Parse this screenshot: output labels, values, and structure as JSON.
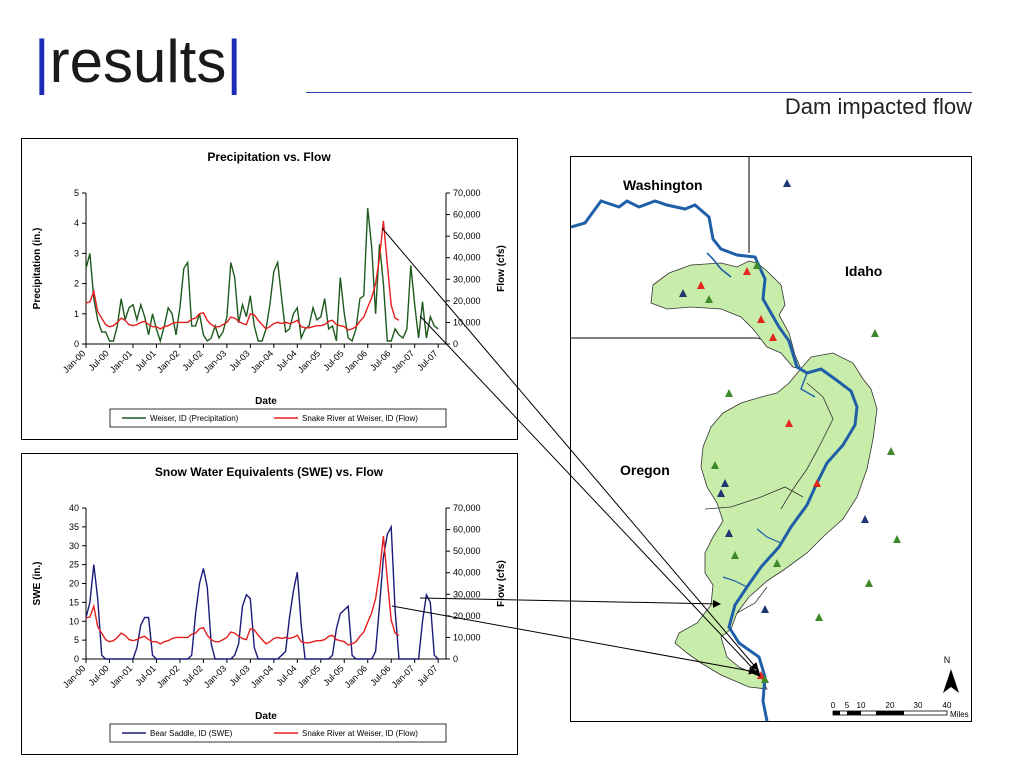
{
  "slide": {
    "title": "results",
    "bar_char": "|",
    "subtitle": "Dam impacted flow"
  },
  "colors": {
    "title_bar": "#1b2bb5",
    "precip_series": "#1e5a1e",
    "swe_series": "#1b1b7a",
    "flow_series": "#e51e1e",
    "river": "#1f5fa8",
    "basin": "#c8ecaa",
    "tri_red": "#e3261d",
    "tri_green": "#3e8a2a",
    "tri_navy": "#1d3570"
  },
  "chart_data": [
    {
      "type": "line",
      "title": "Precipitation vs. Flow",
      "xlabel": "Date",
      "ylabel": "Precipitation (in.)",
      "y2label": "Flow (cfs)",
      "categories": [
        "Jan-00",
        "Jul-00",
        "Jan-01",
        "Jul-01",
        "Jan-02",
        "Jul-02",
        "Jan-03",
        "Jul-03",
        "Jan-04",
        "Jul-04",
        "Jan-05",
        "Jul-05",
        "Jan-06",
        "Jul-06",
        "Jan-07",
        "Jul-07"
      ],
      "ylim": [
        0,
        5
      ],
      "yticks": [
        "0",
        "1",
        "2",
        "3",
        "4",
        "5"
      ],
      "y2lim": [
        0,
        70000
      ],
      "y2ticks": [
        "0",
        "10,000",
        "20,000",
        "30,000",
        "40,000",
        "50,000",
        "60,000",
        "70,000"
      ],
      "legend_position": "bottom",
      "series": [
        {
          "name": "Weiser, ID (Precipitation)",
          "axis": "left",
          "color": "#1e5a1e",
          "x": [
            0,
            1,
            2,
            3,
            4,
            5,
            6,
            7,
            8,
            9,
            10,
            11,
            12,
            13,
            14,
            15,
            16,
            17,
            18,
            19,
            20,
            21,
            22,
            23,
            24,
            25,
            26,
            27,
            28,
            29,
            30,
            31,
            32,
            33,
            34,
            35,
            36,
            37,
            38,
            39,
            40,
            41,
            42,
            43,
            44,
            45,
            46,
            47,
            48,
            49,
            50,
            51,
            52,
            53,
            54,
            55,
            56,
            57,
            58,
            59,
            60,
            61,
            62,
            63,
            64,
            65,
            66,
            67,
            68,
            69,
            70,
            71,
            72,
            73,
            74,
            75,
            76,
            77,
            78,
            79,
            80,
            81,
            82,
            83,
            84,
            85,
            86,
            87,
            88,
            89,
            90
          ],
          "values": [
            2.5,
            3.0,
            1.5,
            0.8,
            0.4,
            0.4,
            0.1,
            0.1,
            0.6,
            1.5,
            0.8,
            1.2,
            1.3,
            0.8,
            1.3,
            0.9,
            0.3,
            1.0,
            0.5,
            0.1,
            0.6,
            1.2,
            1.0,
            0.3,
            1.2,
            2.5,
            2.7,
            0.6,
            0.6,
            1.0,
            0.3,
            0.1,
            0.2,
            0.6,
            0.2,
            0.4,
            0.9,
            2.7,
            2.2,
            0.7,
            1.3,
            0.9,
            1.6,
            0.6,
            0.1,
            0.1,
            0.5,
            1.3,
            2.4,
            2.7,
            1.5,
            0.4,
            0.5,
            1.0,
            1.2,
            0.2,
            0.5,
            0.6,
            1.2,
            0.8,
            0.9,
            1.5,
            0.5,
            0.6,
            0.1,
            2.2,
            1.0,
            0.2,
            0.1,
            0.5,
            1.5,
            1.6,
            4.5,
            3.2,
            1.0,
            3.3,
            2.0,
            0.1,
            0.1,
            0.5,
            0.3,
            0.2,
            0.5,
            2.6,
            1.3,
            0.2,
            1.4,
            0.2,
            0.9,
            0.6,
            0.5
          ]
        },
        {
          "name": "Snake River at Weiser, ID (Flow)",
          "axis": "right",
          "color": "#e51e1e",
          "x": [
            0,
            1,
            2,
            3,
            4,
            5,
            6,
            7,
            8,
            9,
            10,
            11,
            12,
            13,
            14,
            15,
            16,
            17,
            18,
            19,
            20,
            21,
            22,
            23,
            24,
            25,
            26,
            27,
            28,
            29,
            30,
            31,
            32,
            33,
            34,
            35,
            36,
            37,
            38,
            39,
            40,
            41,
            42,
            43,
            44,
            45,
            46,
            47,
            48,
            49,
            50,
            51,
            52,
            53,
            54,
            55,
            56,
            57,
            58,
            59,
            60,
            61,
            62,
            63,
            64,
            65,
            66,
            67,
            68,
            69,
            70,
            71,
            72,
            73,
            74,
            75,
            76,
            77,
            78,
            79,
            80
          ],
          "values": [
            19000,
            19500,
            24500,
            15000,
            12000,
            9000,
            8000,
            8500,
            10000,
            12000,
            11000,
            9000,
            8500,
            9000,
            10000,
            10500,
            9000,
            8000,
            8000,
            7000,
            8000,
            8500,
            9500,
            10000,
            10000,
            10000,
            10000,
            11500,
            12000,
            14000,
            14500,
            11000,
            9000,
            8000,
            8000,
            9000,
            10000,
            12500,
            12000,
            10500,
            9500,
            9000,
            14000,
            13500,
            11000,
            9000,
            7000,
            8000,
            9500,
            10000,
            9500,
            10000,
            9500,
            10000,
            11000,
            8000,
            7500,
            7500,
            8000,
            8500,
            8500,
            9000,
            10500,
            11000,
            9000,
            8500,
            8000,
            6500,
            7000,
            8000,
            10500,
            12500,
            17000,
            21500,
            28000,
            40000,
            57000,
            37000,
            18000,
            12000,
            11000
          ]
        }
      ]
    },
    {
      "type": "line",
      "title": "Snow Water Equivalents (SWE) vs. Flow",
      "xlabel": "Date",
      "ylabel": "SWE (in.)",
      "y2label": "Flow (cfs)",
      "categories": [
        "Jan-00",
        "Jul-00",
        "Jan-01",
        "Jul-01",
        "Jan-02",
        "Jul-02",
        "Jan-03",
        "Jul-03",
        "Jan-04",
        "Jul-04",
        "Jan-05",
        "Jul-05",
        "Jan-06",
        "Jul-06",
        "Jan-07",
        "Jul-07"
      ],
      "ylim": [
        0,
        40
      ],
      "yticks": [
        "0",
        "5",
        "10",
        "15",
        "20",
        "25",
        "30",
        "35",
        "40"
      ],
      "y2lim": [
        0,
        70000
      ],
      "y2ticks": [
        "0",
        "10,000",
        "20,000",
        "30,000",
        "40,000",
        "50,000",
        "60,000",
        "70,000"
      ],
      "legend_position": "bottom",
      "series": [
        {
          "name": "Bear Saddle, ID (SWE)",
          "axis": "left",
          "color": "#1b1b7a",
          "x": [
            0,
            1,
            2,
            3,
            4,
            5,
            6,
            7,
            8,
            9,
            10,
            11,
            12,
            13,
            14,
            15,
            16,
            17,
            18,
            19,
            20,
            21,
            22,
            23,
            24,
            25,
            26,
            27,
            28,
            29,
            30,
            31,
            32,
            33,
            34,
            35,
            36,
            37,
            38,
            39,
            40,
            41,
            42,
            43,
            44,
            45,
            46,
            47,
            48,
            49,
            50,
            51,
            52,
            53,
            54,
            55,
            56,
            57,
            58,
            59,
            60,
            61,
            62,
            63,
            64,
            65,
            66,
            67,
            68,
            69,
            70,
            71,
            72,
            73,
            74,
            75,
            76,
            77,
            78,
            79,
            80,
            81,
            82,
            83,
            84,
            85,
            86,
            87,
            88,
            89,
            90
          ],
          "values": [
            11,
            15,
            25,
            16,
            1,
            0,
            0,
            0,
            0,
            0,
            0,
            0,
            0,
            3,
            9,
            11,
            11,
            1,
            0,
            0,
            0,
            0,
            0,
            0,
            0,
            0,
            0,
            1,
            12,
            20,
            24,
            19,
            4,
            0,
            0,
            0,
            0,
            0,
            1,
            4,
            14,
            17,
            16,
            3,
            0,
            0,
            0,
            0,
            0,
            0,
            1,
            2,
            11,
            18,
            23,
            9,
            0,
            0,
            0,
            0,
            0,
            0,
            0,
            1,
            8,
            12,
            13,
            14,
            1,
            0,
            0,
            0,
            0,
            0,
            2,
            14,
            27,
            33,
            35,
            13,
            0,
            0,
            0,
            0,
            0,
            0,
            10,
            17,
            15,
            1,
            0
          ]
        },
        {
          "name": "Snake River at Weiser, ID (Flow)",
          "axis": "right",
          "color": "#e51e1e",
          "x": [
            0,
            1,
            2,
            3,
            4,
            5,
            6,
            7,
            8,
            9,
            10,
            11,
            12,
            13,
            14,
            15,
            16,
            17,
            18,
            19,
            20,
            21,
            22,
            23,
            24,
            25,
            26,
            27,
            28,
            29,
            30,
            31,
            32,
            33,
            34,
            35,
            36,
            37,
            38,
            39,
            40,
            41,
            42,
            43,
            44,
            45,
            46,
            47,
            48,
            49,
            50,
            51,
            52,
            53,
            54,
            55,
            56,
            57,
            58,
            59,
            60,
            61,
            62,
            63,
            64,
            65,
            66,
            67,
            68,
            69,
            70,
            71,
            72,
            73,
            74,
            75,
            76,
            77,
            78,
            79,
            80
          ],
          "values": [
            19000,
            19500,
            24500,
            15000,
            12000,
            9000,
            8000,
            8500,
            10000,
            12000,
            11000,
            9000,
            8500,
            9000,
            10000,
            10500,
            9000,
            8000,
            8000,
            7000,
            8000,
            8500,
            9500,
            10000,
            10000,
            10000,
            10000,
            11500,
            12000,
            14000,
            14500,
            11000,
            9000,
            8000,
            8000,
            9000,
            10000,
            12500,
            12000,
            10500,
            9500,
            9000,
            14000,
            13500,
            11000,
            9000,
            7000,
            8000,
            9500,
            10000,
            9500,
            10000,
            9500,
            10000,
            11000,
            8000,
            7500,
            7500,
            8000,
            8500,
            8500,
            9000,
            10500,
            11000,
            9000,
            8500,
            8000,
            6500,
            7000,
            8000,
            10500,
            12500,
            17000,
            21500,
            28000,
            40000,
            57000,
            37000,
            18000,
            12000,
            11000
          ]
        }
      ]
    }
  ],
  "map": {
    "labels": [
      "Washington",
      "Idaho",
      "Oregon"
    ],
    "compass_label": "N",
    "scale_ticks": [
      "0",
      "5",
      "10",
      "20",
      "30",
      "40"
    ],
    "scale_unit": "Miles"
  }
}
